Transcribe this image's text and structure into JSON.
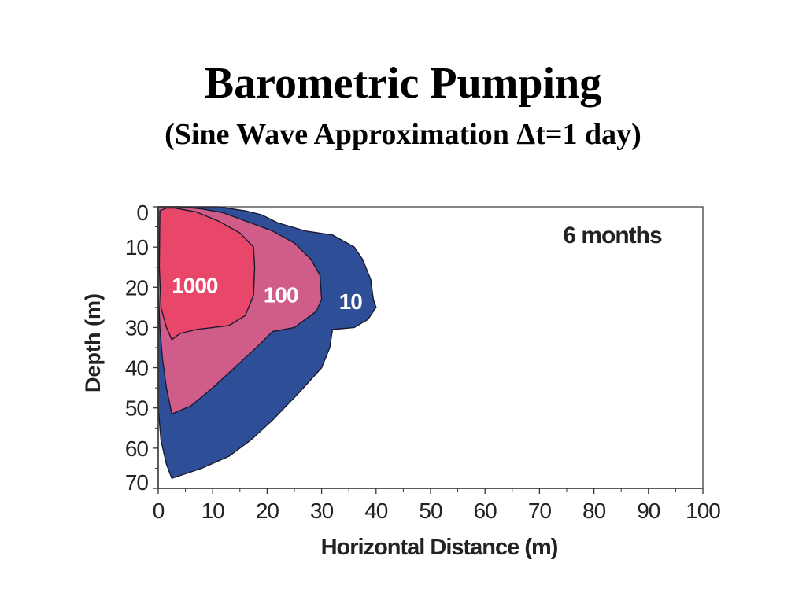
{
  "page": {
    "title": "Barometric Pumping",
    "subtitle": "(Sine Wave Approximation Δt=1 day)"
  },
  "chart_data": {
    "type": "area",
    "xlabel": "Horizontal Distance (m)",
    "ylabel": "Depth (m)",
    "xlim": [
      0,
      100
    ],
    "ylim": [
      0,
      70
    ],
    "y_inverted": true,
    "x_ticks": [
      0,
      10,
      20,
      30,
      40,
      50,
      60,
      70,
      80,
      90,
      100
    ],
    "y_ticks": [
      0,
      10,
      20,
      30,
      40,
      50,
      60,
      70
    ],
    "grid": false,
    "annotation": "6 months",
    "colors": {
      "c10": "#2e4f98",
      "c100": "#cf5c89",
      "c1000": "#e8476a",
      "outline": "#1a1a2e"
    },
    "contours": [
      {
        "label": "10",
        "label_pos": [
          35.3,
          23.5
        ],
        "color": "#2e4f98",
        "points": [
          [
            0,
            0
          ],
          [
            11,
            0
          ],
          [
            16,
            1
          ],
          [
            19,
            2
          ],
          [
            22,
            4
          ],
          [
            27,
            6
          ],
          [
            32,
            7
          ],
          [
            36,
            10
          ],
          [
            37.5,
            13
          ],
          [
            39,
            18
          ],
          [
            39.5,
            23
          ],
          [
            40,
            25
          ],
          [
            38.5,
            28
          ],
          [
            36,
            30
          ],
          [
            32,
            30.5
          ],
          [
            31.5,
            35
          ],
          [
            30,
            40
          ],
          [
            26,
            46
          ],
          [
            21,
            53
          ],
          [
            17,
            58
          ],
          [
            13,
            62
          ],
          [
            8,
            65
          ],
          [
            2.5,
            67.5
          ],
          [
            1.5,
            64
          ],
          [
            0.5,
            58
          ],
          [
            0,
            50
          ]
        ]
      },
      {
        "label": "100",
        "label_pos": [
          22.5,
          21.8
        ],
        "color": "#cf5c89",
        "points": [
          [
            0,
            0
          ],
          [
            4,
            0
          ],
          [
            8,
            0.5
          ],
          [
            12,
            1.5
          ],
          [
            17,
            4
          ],
          [
            21,
            6
          ],
          [
            25,
            9
          ],
          [
            28,
            13
          ],
          [
            29.7,
            17
          ],
          [
            30,
            23
          ],
          [
            29,
            26
          ],
          [
            25,
            30
          ],
          [
            21,
            31
          ],
          [
            18,
            35
          ],
          [
            14,
            40
          ],
          [
            10,
            45
          ],
          [
            6,
            49.5
          ],
          [
            2.5,
            51.5
          ],
          [
            1.5,
            45
          ],
          [
            0.8,
            38
          ],
          [
            0.3,
            30
          ],
          [
            0,
            20
          ]
        ]
      },
      {
        "label": "1000",
        "label_pos": [
          6.7,
          19.5
        ],
        "color": "#e8476a",
        "points": [
          [
            0.3,
            1
          ],
          [
            1.5,
            0.3
          ],
          [
            3,
            0.3
          ],
          [
            7,
            1.3
          ],
          [
            11,
            3.5
          ],
          [
            15,
            6.5
          ],
          [
            17.5,
            10
          ],
          [
            17.7,
            15
          ],
          [
            17.5,
            22
          ],
          [
            16,
            27
          ],
          [
            13,
            29.5
          ],
          [
            7,
            30.5
          ],
          [
            4,
            31.5
          ],
          [
            2.5,
            33
          ],
          [
            1.5,
            30
          ],
          [
            0.5,
            25
          ],
          [
            0.2,
            15
          ]
        ]
      }
    ]
  }
}
